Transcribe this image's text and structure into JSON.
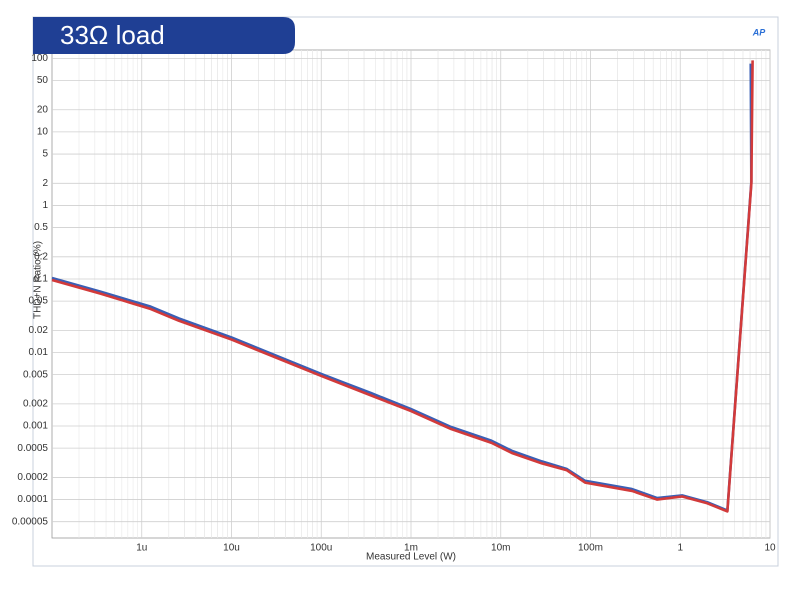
{
  "chart_data": {
    "type": "line",
    "title": "33Ω load",
    "x_label": "Measured Level (W)",
    "y_label": "THD+N Ratio (%)",
    "x_log": true,
    "y_log": true,
    "grid": true,
    "xlim": [
      1e-07,
      10
    ],
    "ylim": [
      3e-05,
      130
    ],
    "xticks": [
      {
        "value": 1e-06,
        "label": "1u"
      },
      {
        "value": 1e-05,
        "label": "10u"
      },
      {
        "value": 0.0001,
        "label": "100u"
      },
      {
        "value": 0.001,
        "label": "1m"
      },
      {
        "value": 0.01,
        "label": "10m"
      },
      {
        "value": 0.1,
        "label": "100m"
      },
      1,
      10
    ],
    "yticks": [
      100,
      50,
      20,
      10,
      5,
      2,
      1,
      0.5,
      0.2,
      0.1,
      0.05,
      0.02,
      0.01,
      0.005,
      0.002,
      0.001,
      0.0005,
      0.0002,
      0.0001,
      5e-05
    ],
    "series": [
      {
        "color": "#3a5fb5",
        "x": [
          1e-07,
          3.5e-07,
          1.26e-06,
          2.6e-06,
          1e-05,
          0.0001,
          0.00036,
          0.001,
          0.0028,
          0.0079,
          0.0133,
          0.0287,
          0.0546,
          0.087,
          0.29,
          0.55,
          1.05,
          2.0,
          3.35,
          6.2,
          6.1
        ],
        "values": [
          0.103,
          0.067,
          0.042,
          0.029,
          0.016,
          0.0051,
          0.0028,
          0.0017,
          0.00097,
          0.00063,
          0.00046,
          0.00033,
          0.00026,
          0.00018,
          0.000139,
          0.000105,
          0.000114,
          9.2e-05,
          7.1e-05,
          2.1,
          85
        ]
      },
      {
        "color": "#d23a3a",
        "x": [
          1e-07,
          3.5e-07,
          1.26e-06,
          2.6e-06,
          1e-05,
          0.0001,
          0.00036,
          0.001,
          0.0028,
          0.0079,
          0.0133,
          0.0287,
          0.0546,
          0.087,
          0.29,
          0.55,
          1.05,
          2.0,
          3.35,
          6.2,
          6.4
        ],
        "values": [
          0.097,
          0.063,
          0.039,
          0.027,
          0.015,
          0.0048,
          0.0026,
          0.0016,
          0.00091,
          0.00059,
          0.00043,
          0.00031,
          0.00025,
          0.00017,
          0.000131,
          0.0001,
          0.00011,
          8.9e-05,
          6.9e-05,
          2.0,
          94
        ]
      }
    ]
  }
}
